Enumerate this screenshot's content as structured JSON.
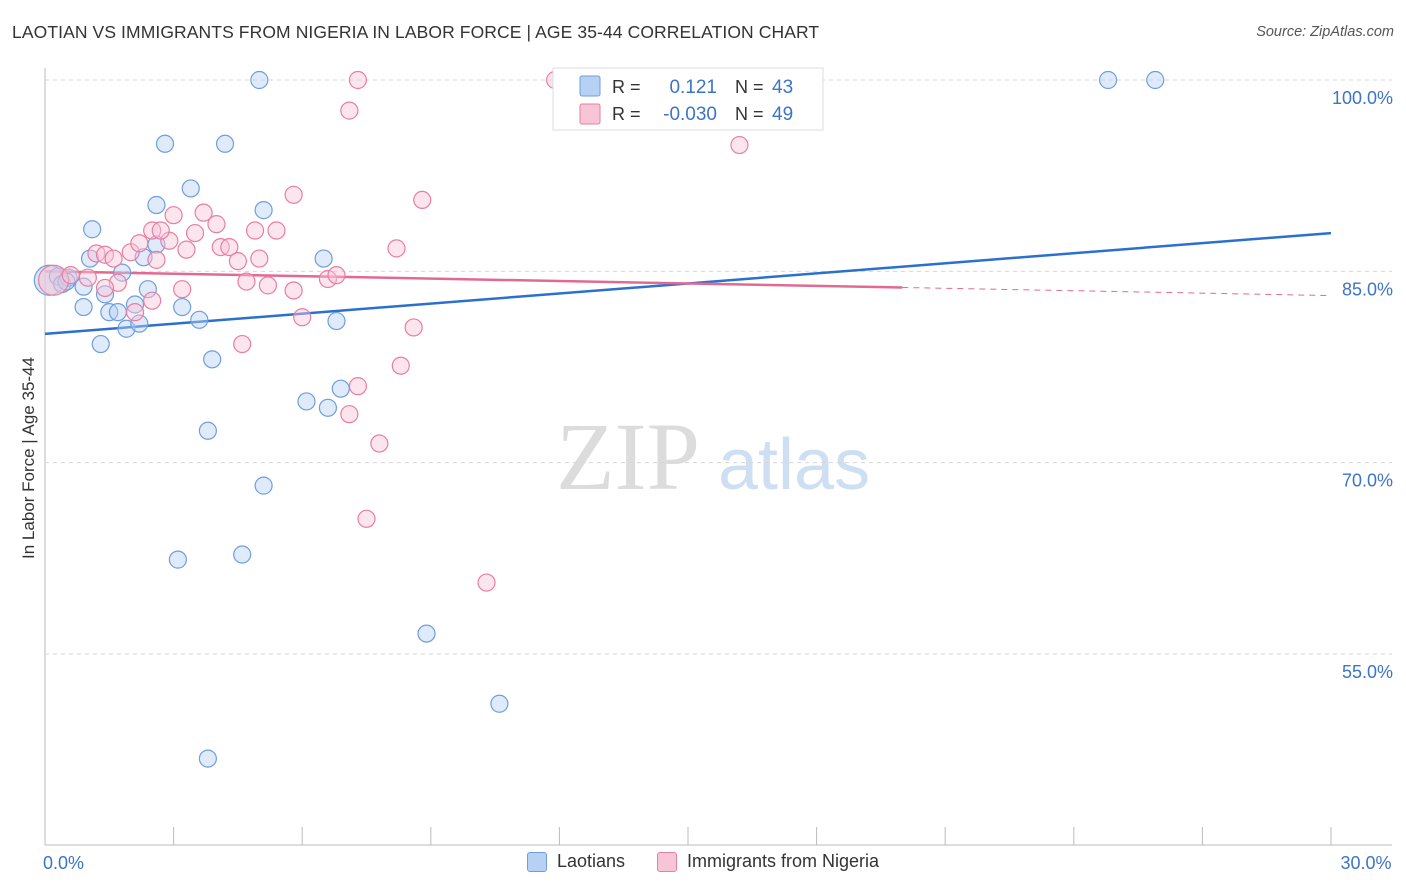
{
  "title": "LAOTIAN VS IMMIGRANTS FROM NIGERIA IN LABOR FORCE | AGE 35-44 CORRELATION CHART",
  "source": "Source: ZipAtlas.com",
  "watermark": {
    "zip": "ZIP",
    "atlas": "atlas"
  },
  "colors": {
    "blue_fill": "#b7d1f4",
    "blue_stroke": "#6e9fdc",
    "blue_line": "#2b6fcf",
    "pink_fill": "#f8c5d6",
    "pink_stroke": "#e97ea1",
    "pink_line": "#e26a92",
    "axis_text": "#3d74c6",
    "grid": "#d6d6d6"
  },
  "legend": {
    "row1": {
      "r_label": "R =",
      "r_value": "0.121",
      "n_label": "N =",
      "n_value": "43"
    },
    "row2": {
      "r_label": "R =",
      "r_value": "-0.030",
      "n_label": "N =",
      "n_value": "49"
    }
  },
  "bottom_legend": {
    "series1": "Laotians",
    "series2": "Immigrants from Nigeria"
  },
  "chart_data": {
    "type": "scatter",
    "title": "LAOTIAN VS IMMIGRANTS FROM NIGERIA IN LABOR FORCE | AGE 35-44 CORRELATION CHART",
    "xlabel": "",
    "ylabel": "In Labor Force | Age 35-44",
    "xlim": [
      0,
      30
    ],
    "ylim": [
      40,
      102
    ],
    "x_tick_labels": [
      {
        "value": 0,
        "label": "0.0%"
      },
      {
        "value": 30,
        "label": "30.0%"
      }
    ],
    "y_tick_labels": [
      {
        "value": 100,
        "label": "100.0%"
      },
      {
        "value": 85,
        "label": "85.0%"
      },
      {
        "value": 70,
        "label": "70.0%"
      },
      {
        "value": 55,
        "label": "55.0%"
      }
    ],
    "series": [
      {
        "name": "Laotians",
        "r": 0.121,
        "n": 43,
        "trend": {
          "x0": 0,
          "y0": 80.1,
          "x1": 30,
          "y1": 88.0,
          "dashed_from": null
        },
        "points": [
          [
            0.1,
            84.3,
            "big"
          ],
          [
            0.3,
            84.6
          ],
          [
            0.4,
            84.0
          ],
          [
            0.55,
            84.5
          ],
          [
            0.9,
            83.8
          ],
          [
            1.05,
            86.0
          ],
          [
            1.1,
            88.3
          ],
          [
            1.4,
            83.2
          ],
          [
            1.8,
            84.9
          ],
          [
            2.3,
            86.1
          ],
          [
            2.6,
            87.1
          ],
          [
            0.9,
            82.2
          ],
          [
            1.5,
            81.8
          ],
          [
            1.7,
            81.8
          ],
          [
            1.9,
            80.5
          ],
          [
            2.1,
            82.4
          ],
          [
            2.2,
            80.9
          ],
          [
            2.4,
            83.6
          ],
          [
            3.2,
            82.2
          ],
          [
            3.6,
            81.2
          ],
          [
            2.6,
            90.2
          ],
          [
            3.4,
            91.5
          ],
          [
            2.8,
            95.0
          ],
          [
            4.2,
            95.0
          ],
          [
            5.1,
            89.8
          ],
          [
            5.0,
            100.0
          ],
          [
            1.3,
            79.3
          ],
          [
            3.9,
            78.1
          ],
          [
            6.5,
            86.0
          ],
          [
            6.9,
            75.8
          ],
          [
            6.1,
            74.8
          ],
          [
            6.6,
            74.3
          ],
          [
            3.8,
            72.5
          ],
          [
            3.1,
            62.4
          ],
          [
            4.6,
            62.8
          ],
          [
            5.1,
            68.2
          ],
          [
            6.8,
            81.1
          ],
          [
            8.9,
            56.6
          ],
          [
            10.6,
            51.1
          ],
          [
            3.8,
            46.8
          ],
          [
            24.8,
            100.0
          ],
          [
            25.9,
            100.0
          ],
          [
            0.5,
            84.2
          ]
        ]
      },
      {
        "name": "Immigrants from Nigeria",
        "r": -0.03,
        "n": 49,
        "trend": {
          "x0": 0,
          "y0": 85.0,
          "x1": 30,
          "y1": 83.1,
          "dashed_from": 20.0
        },
        "points": [
          [
            0.2,
            84.3,
            "big"
          ],
          [
            0.6,
            84.7
          ],
          [
            1.0,
            84.5
          ],
          [
            1.2,
            86.4
          ],
          [
            1.4,
            86.3
          ],
          [
            1.7,
            84.1
          ],
          [
            2.0,
            86.5
          ],
          [
            2.2,
            87.2
          ],
          [
            2.6,
            85.9
          ],
          [
            2.9,
            87.4
          ],
          [
            2.5,
            88.2
          ],
          [
            2.7,
            88.2
          ],
          [
            3.0,
            89.4
          ],
          [
            3.3,
            86.7
          ],
          [
            3.7,
            89.6
          ],
          [
            4.0,
            88.7
          ],
          [
            4.1,
            86.9
          ],
          [
            4.3,
            86.9
          ],
          [
            4.5,
            85.8
          ],
          [
            4.9,
            88.2
          ],
          [
            5.0,
            86.0
          ],
          [
            5.4,
            88.2
          ],
          [
            5.8,
            91.0
          ],
          [
            1.4,
            83.7
          ],
          [
            2.1,
            81.8
          ],
          [
            2.5,
            82.7
          ],
          [
            3.2,
            83.6
          ],
          [
            4.7,
            84.2
          ],
          [
            5.2,
            83.9
          ],
          [
            5.8,
            83.5
          ],
          [
            6.0,
            81.4
          ],
          [
            6.6,
            84.4
          ],
          [
            6.8,
            84.7
          ],
          [
            7.3,
            100.0
          ],
          [
            7.1,
            97.6
          ],
          [
            4.6,
            79.3
          ],
          [
            8.2,
            86.8
          ],
          [
            8.3,
            77.6
          ],
          [
            8.6,
            80.6
          ],
          [
            8.8,
            90.6
          ],
          [
            7.3,
            76.0
          ],
          [
            7.1,
            73.8
          ],
          [
            7.8,
            71.5
          ],
          [
            7.5,
            65.6
          ],
          [
            10.3,
            60.6
          ],
          [
            11.9,
            100.0
          ],
          [
            16.2,
            94.9
          ],
          [
            3.5,
            88.0
          ],
          [
            1.6,
            86.0
          ]
        ]
      }
    ]
  }
}
